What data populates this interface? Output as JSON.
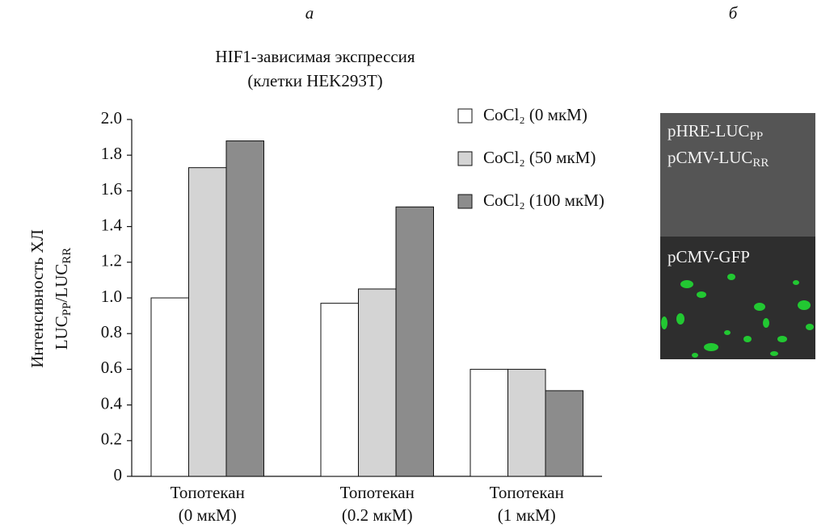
{
  "chart_data": {
    "type": "bar",
    "panel_labels": [
      "а",
      "б"
    ],
    "title": [
      "HIF1-зависимая экспрессия",
      "(клетки HEK293T)"
    ],
    "y_label": [
      [
        "Интенсивность ХЛ"
      ],
      [
        "LUC",
        "PP",
        "/LUC",
        "RR"
      ]
    ],
    "categories": [
      [
        "Топотекан",
        "(0 мкМ)"
      ],
      [
        "Топотекан",
        "(0.2 мкМ)"
      ],
      [
        "Топотекан",
        "(1 мкМ)"
      ]
    ],
    "series": [
      {
        "name": "CoCl₂ (0 мкМ)",
        "color": "#ffffff",
        "values": [
          1.0,
          0.97,
          0.6
        ]
      },
      {
        "name": "CoCl₂ (50 мкМ)",
        "color": "#d4d4d4",
        "values": [
          1.73,
          1.05,
          0.6
        ]
      },
      {
        "name": "CoCl₂ (100 мкМ)",
        "color": "#8c8c8c",
        "values": [
          1.88,
          1.51,
          0.48
        ]
      }
    ],
    "ylim": [
      0,
      2
    ],
    "yticks": [
      0,
      0.2,
      0.4,
      0.6,
      0.8,
      {
        "value": 1,
        "label": "1.0"
      },
      1.2,
      1.4,
      1.6,
      1.8,
      {
        "value": 2,
        "label": "2.0"
      }
    ],
    "image_labels": [
      [
        "pHRE-LUC",
        "PP"
      ],
      [
        "pCMV-LUC",
        "RR"
      ],
      [
        "pCMV-GFP"
      ]
    ]
  }
}
